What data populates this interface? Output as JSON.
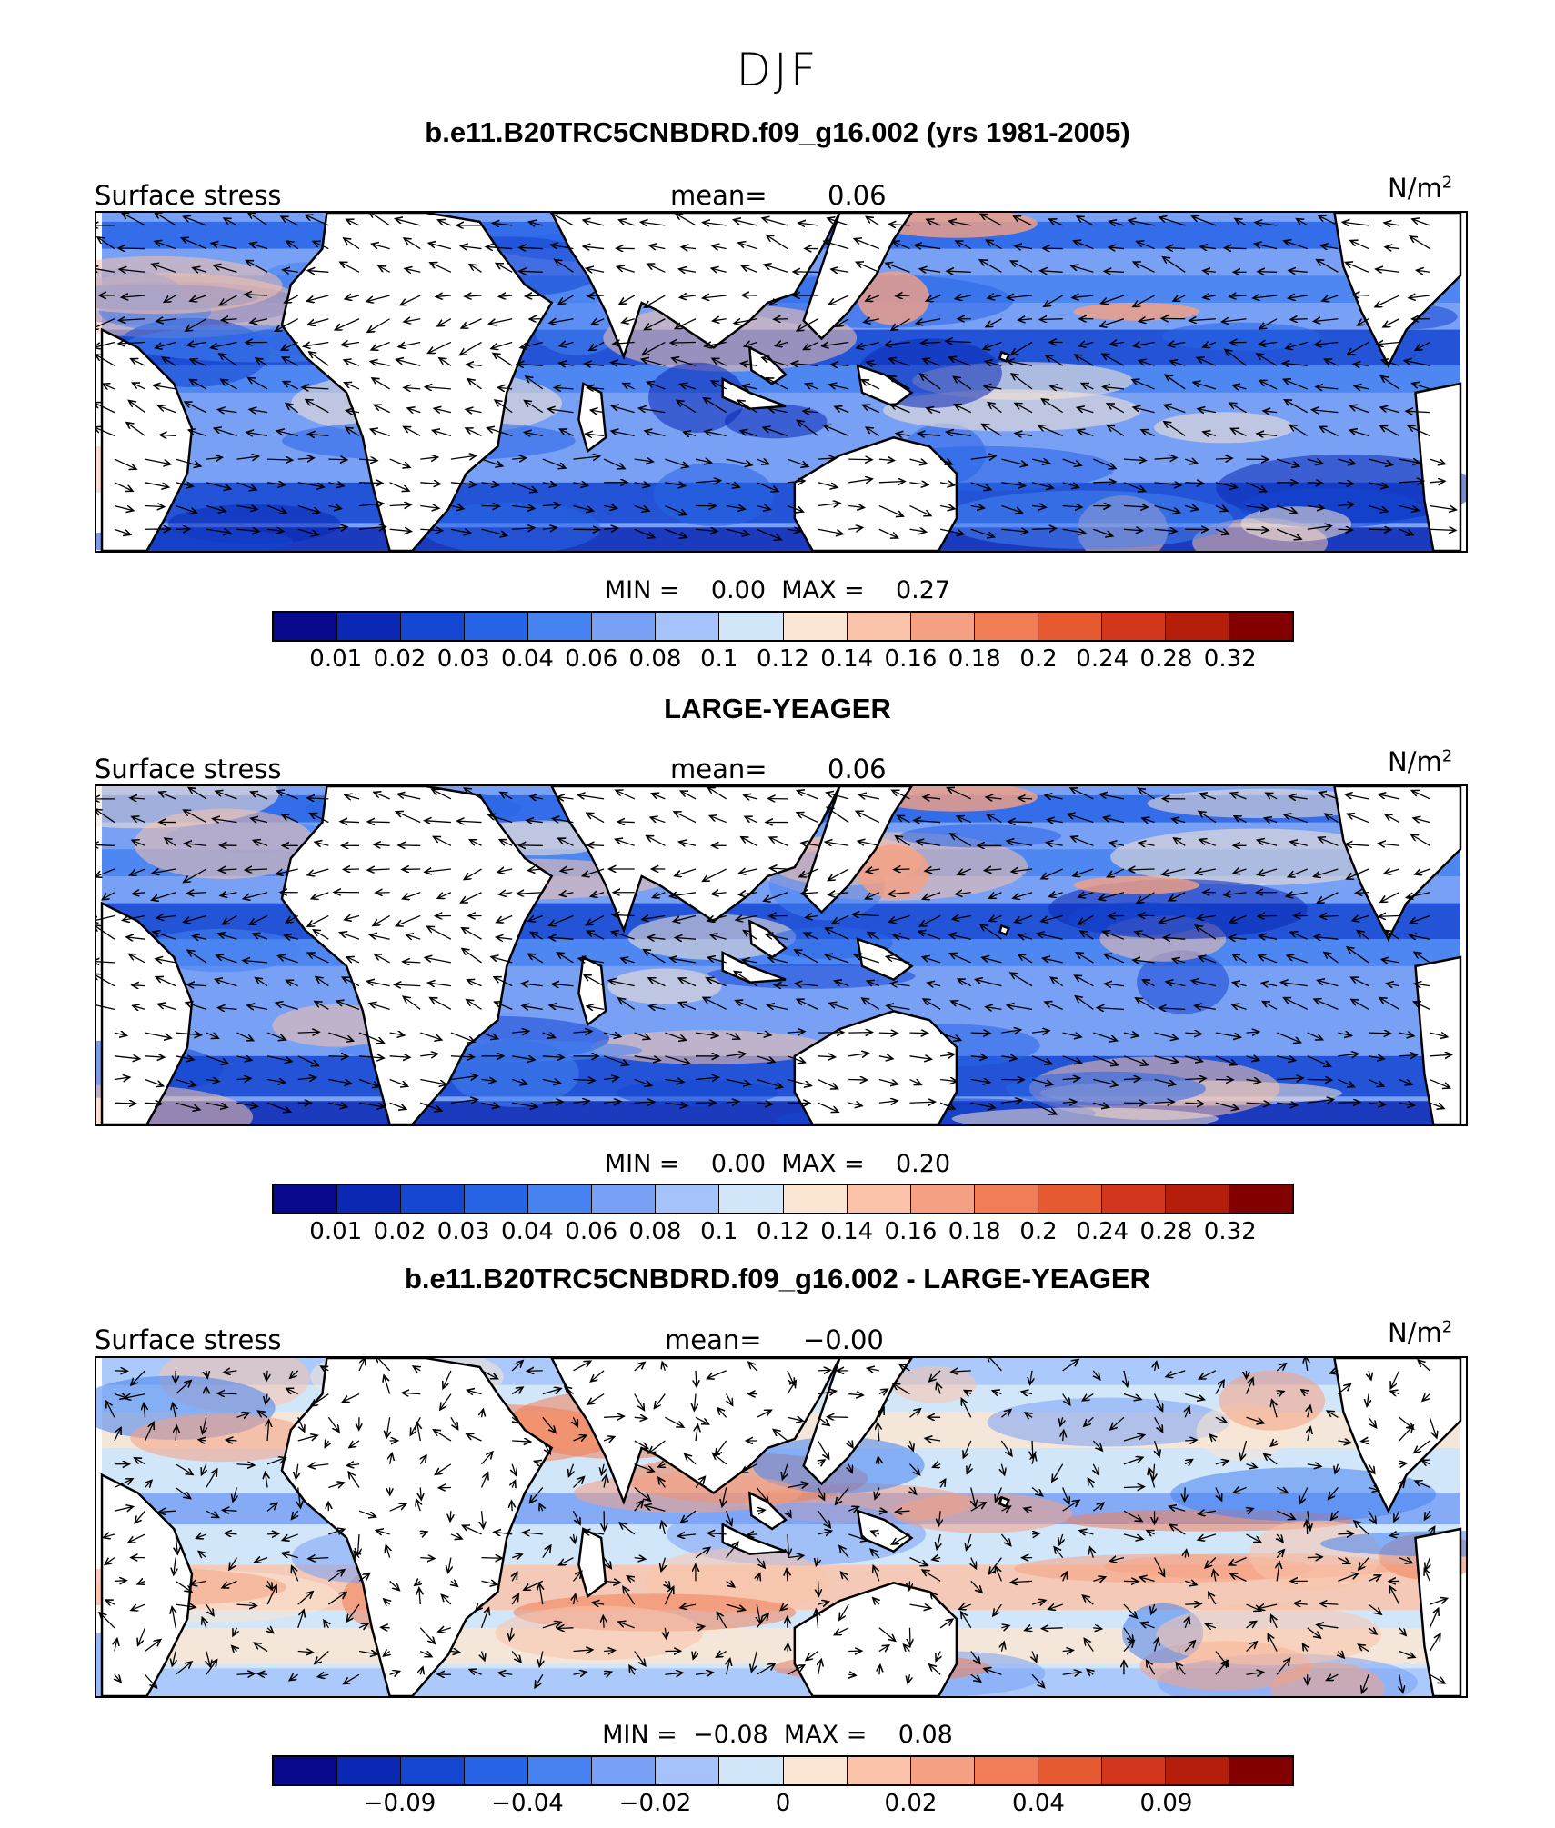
{
  "title": "DJF",
  "palette": [
    "#08088c",
    "#0a28b4",
    "#1446d2",
    "#2864e6",
    "#4682f0",
    "#78a0f5",
    "#a5c3fa",
    "#d2e6fa",
    "#fae6d2",
    "#fac3aa",
    "#f5a082",
    "#f07d55",
    "#e65a32",
    "#d2371e",
    "#b41e0a",
    "#820000"
  ],
  "land_color": "#ffffff",
  "panels": [
    {
      "title": "b.e11.B20TRC5CNBDRD.f09_g16.002 (yrs 1981-2005)",
      "var_label": "Surface stress",
      "mean_label": "mean=",
      "mean_value": "0.06",
      "unit": "N/m",
      "unit_exp": "2",
      "min_label": "MIN =",
      "min_value": "0.00",
      "max_label": "MAX =",
      "max_value": "0.27",
      "ticks": [
        "0.01",
        "0.02",
        "0.03",
        "0.04",
        "0.06",
        "0.08",
        "0.1",
        "0.12",
        "0.14",
        "0.16",
        "0.18",
        "0.2",
        "0.24",
        "0.28",
        "0.32"
      ],
      "field": "abs"
    },
    {
      "title": "LARGE-YEAGER",
      "var_label": "Surface stress",
      "mean_label": "mean=",
      "mean_value": "0.06",
      "unit": "N/m",
      "unit_exp": "2",
      "min_label": "MIN =",
      "min_value": "0.00",
      "max_label": "MAX =",
      "max_value": "0.20",
      "ticks": [
        "0.01",
        "0.02",
        "0.03",
        "0.04",
        "0.06",
        "0.08",
        "0.1",
        "0.12",
        "0.14",
        "0.16",
        "0.18",
        "0.2",
        "0.24",
        "0.28",
        "0.32"
      ],
      "field": "abs"
    },
    {
      "title": "b.e11.B20TRC5CNBDRD.f09_g16.002 - LARGE-YEAGER",
      "var_label": "Surface stress",
      "mean_label": "mean=",
      "mean_value": "−0.00",
      "unit": "N/m",
      "unit_exp": "2",
      "min_label": "MIN =",
      "min_value": "−0.08",
      "max_label": "MAX =",
      "max_value": "0.08",
      "ticks": [
        "−0.09",
        "−0.04",
        "−0.02",
        "0",
        "0.02",
        "0.04",
        "0.09"
      ],
      "field": "diff"
    }
  ]
}
